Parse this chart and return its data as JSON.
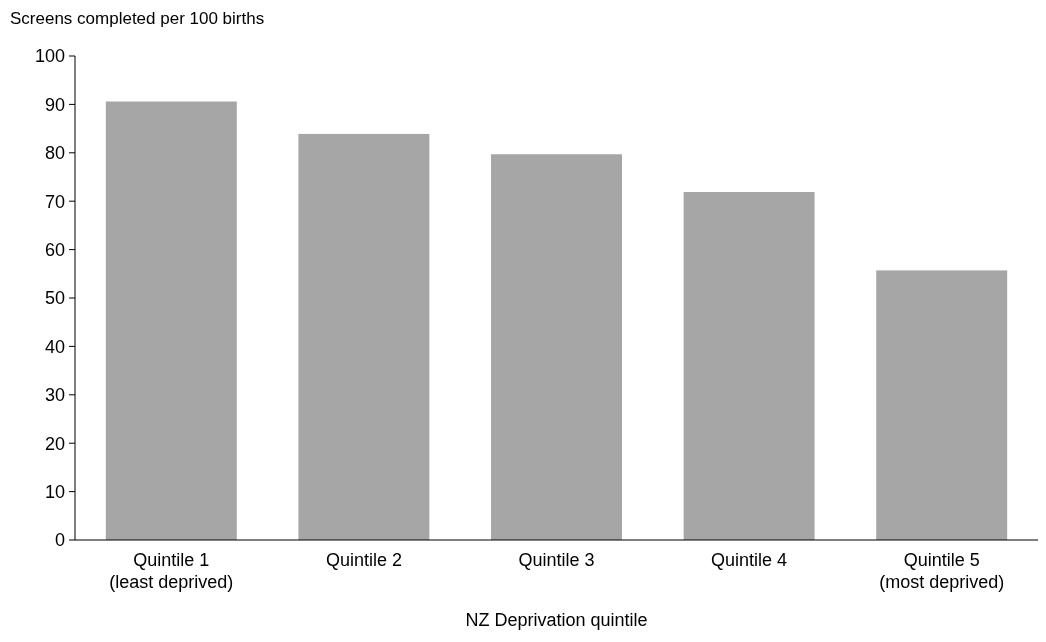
{
  "chart_data": {
    "type": "bar",
    "ylabel": "Screens completed per 100 births",
    "xlabel": "NZ Deprivation quintile",
    "categories": [
      "Quintile 1\n(least deprived)",
      "Quintile 2",
      "Quintile 3",
      "Quintile 4",
      "Quintile 5\n(most deprived)"
    ],
    "values": [
      90.6,
      83.9,
      79.7,
      71.9,
      55.7
    ],
    "color": "#a6a6a6",
    "ylim": [
      0,
      100
    ],
    "yticks": [
      0,
      10,
      20,
      30,
      40,
      50,
      60,
      70,
      80,
      90,
      100
    ],
    "grid": false
  }
}
